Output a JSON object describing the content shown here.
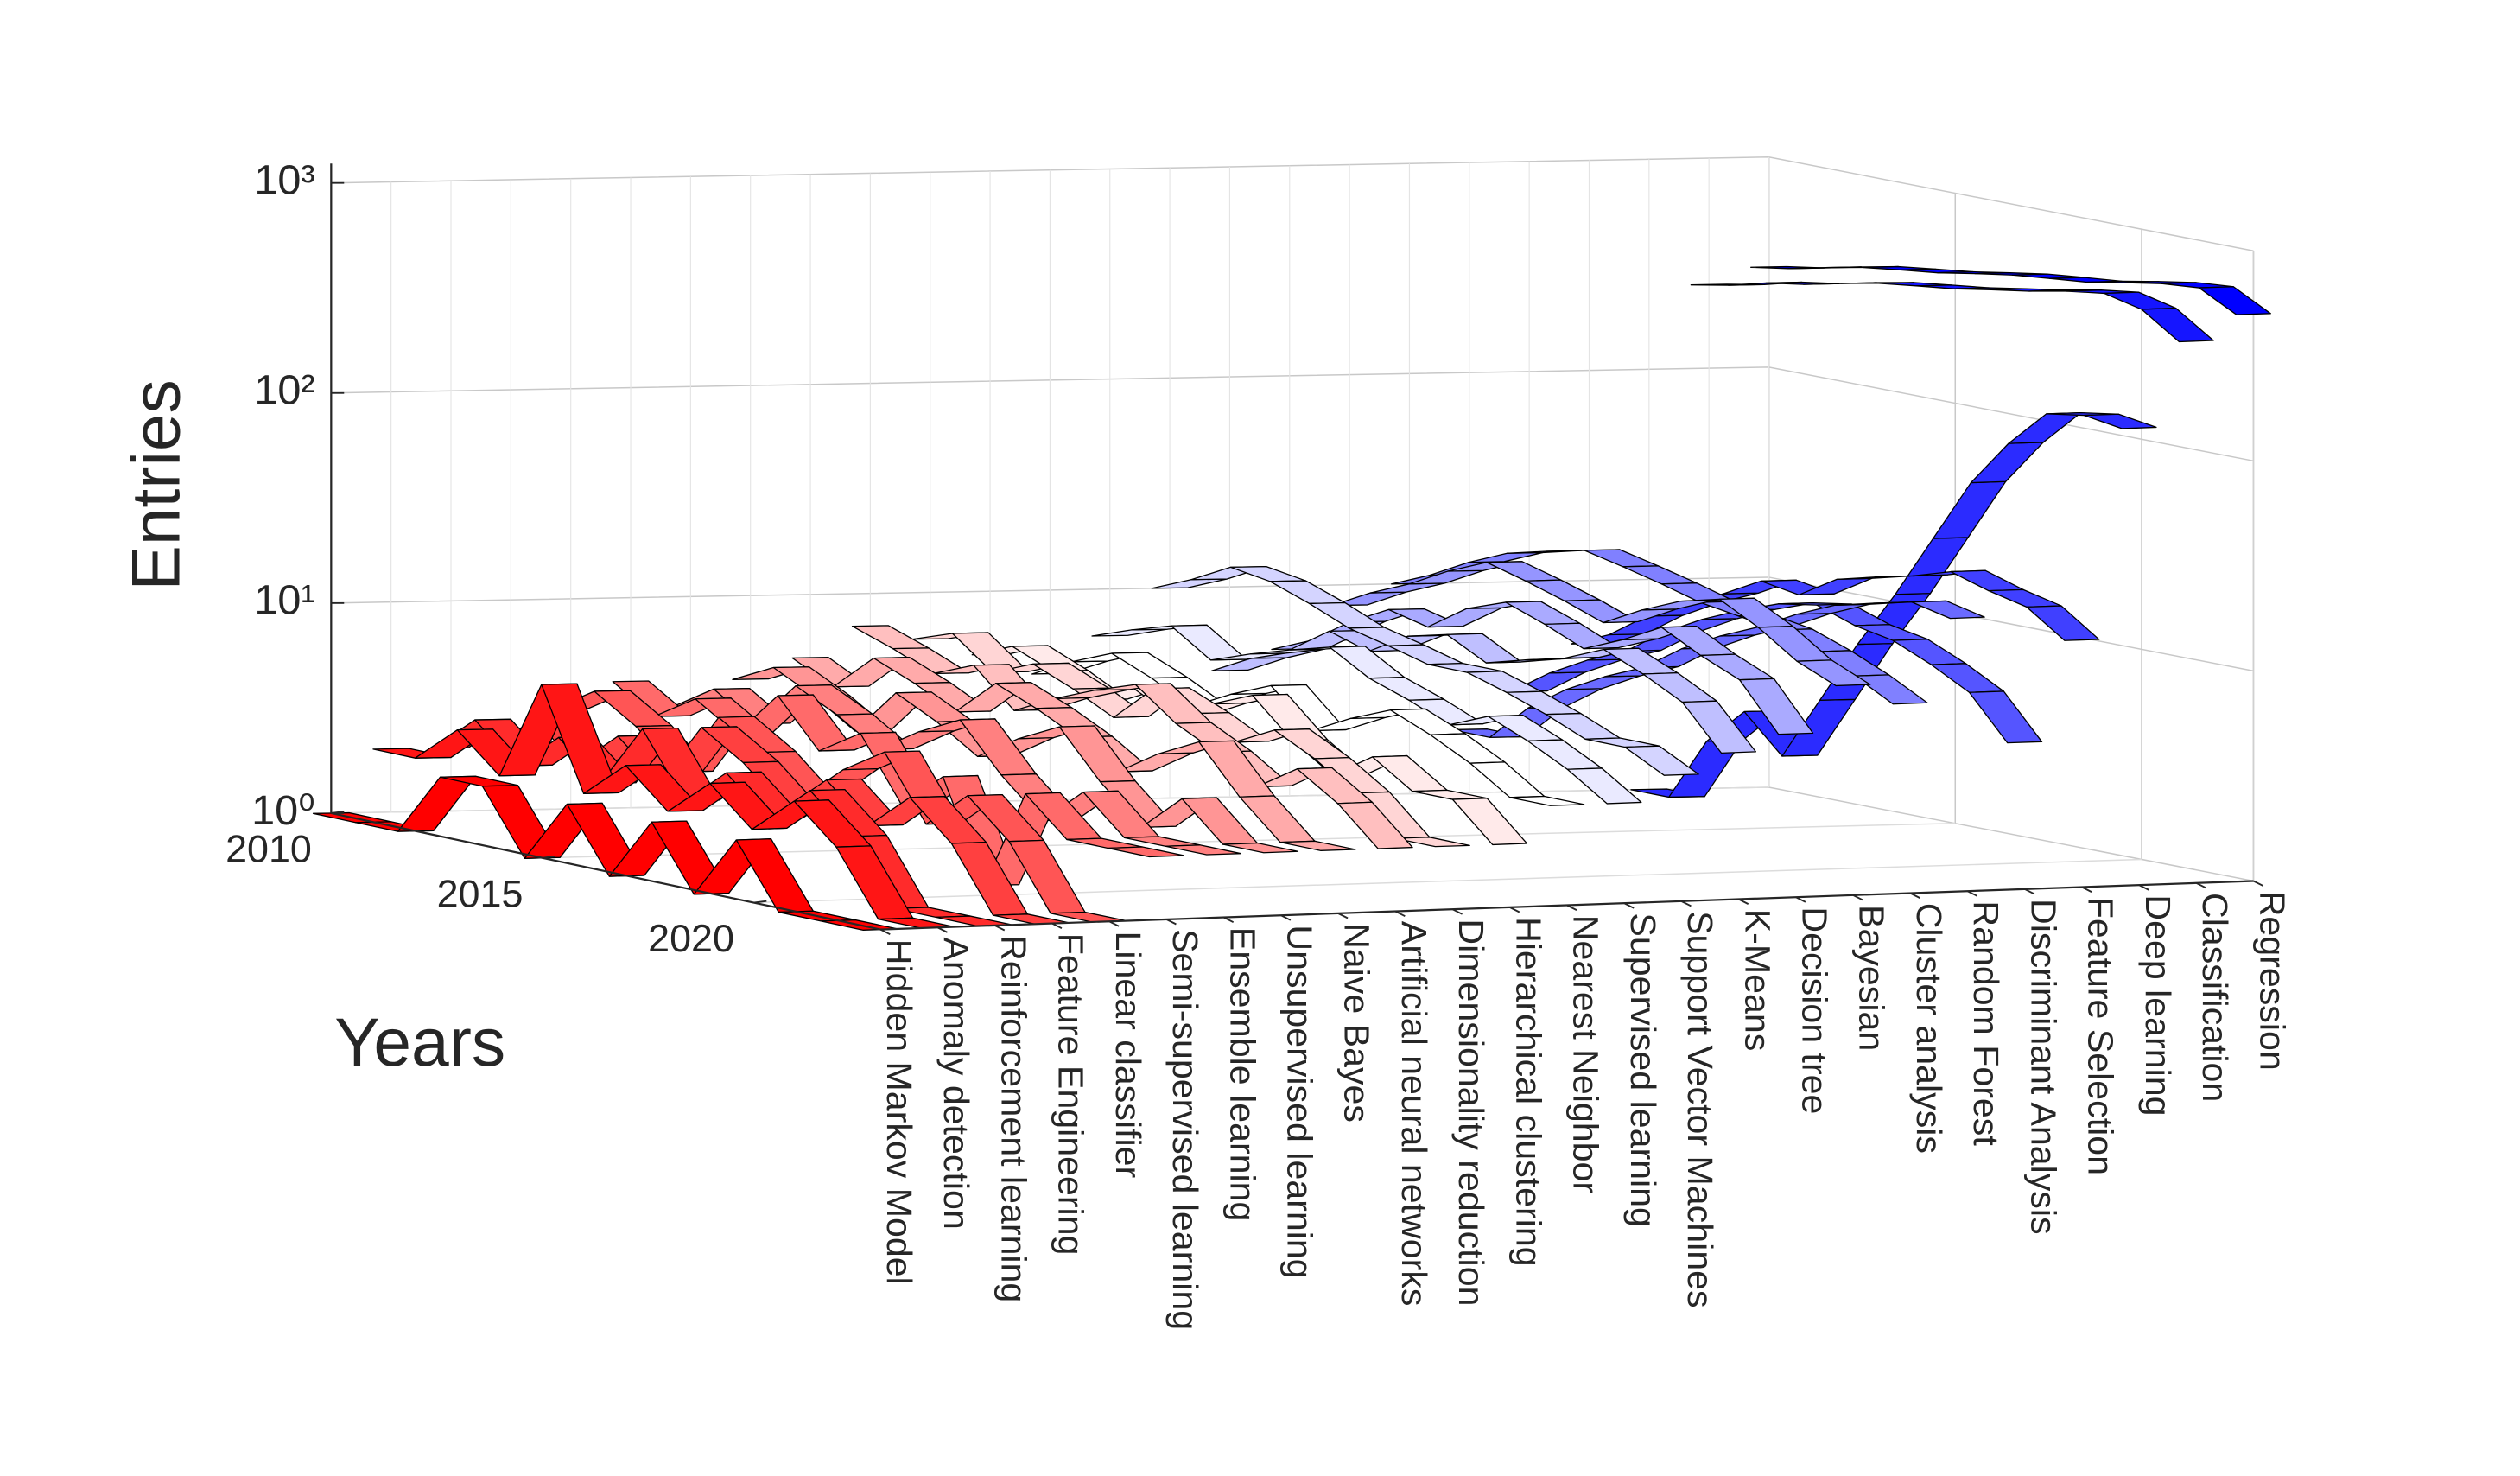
{
  "chart_data": {
    "type": "ribbon3d",
    "xlabel": "Years",
    "ylabel": "Entries",
    "x": [
      2010,
      2011,
      2012,
      2013,
      2014,
      2015,
      2016,
      2017,
      2018,
      2019,
      2020,
      2021,
      2022,
      2023
    ],
    "xlim": [
      2010,
      2023
    ],
    "xticks": [
      2010,
      2015,
      2020
    ],
    "ylim": [
      1,
      1000
    ],
    "yticks": [
      {
        "value": 1,
        "label": "10⁰"
      },
      {
        "value": 10,
        "label": "10¹"
      },
      {
        "value": 100,
        "label": "10²"
      },
      {
        "value": 1000,
        "label": "10³"
      }
    ],
    "log_scale": true,
    "grid": true,
    "colormap": [
      "#ff0000",
      "#ffffff",
      "#0000ff"
    ],
    "categories": [
      "Hidden Markov Model",
      "Anomaly detection",
      "Reinforcement learning",
      "Feature Engineering",
      "Linear classifier",
      "Semi-supervised learning",
      "Ensemble learning",
      "Unsupervised learning",
      "Naive Bayes",
      "Artificial neural networks",
      "Dimensionality reduction",
      "Hierarchical clustering",
      "Nearest Neighbor",
      "Supervised learning",
      "Support Vector Machines",
      "K-Means",
      "Decision tree",
      "Bayesian",
      "Cluster analysis",
      "Random Forest",
      "Discriminant Analysis",
      "Feature Selection",
      "Deep learning",
      "Classification",
      "Regression"
    ],
    "series": [
      {
        "name": "Hidden Markov Model",
        "values": [
          1,
          1,
          1,
          2,
          2,
          1,
          2,
          1,
          2,
          1,
          2,
          1,
          1,
          1
        ]
      },
      {
        "name": "Anomaly detection",
        "values": [
          2,
          2,
          3,
          2,
          6,
          2,
          3,
          2,
          3,
          2,
          3,
          2,
          1,
          1
        ]
      },
      {
        "name": "Reinforcement learning",
        "values": [
          2,
          3,
          2,
          3,
          2,
          4,
          2,
          3,
          2,
          3,
          2,
          1,
          1,
          1
        ]
      },
      {
        "name": "Feature Engineering",
        "values": [
          2,
          3,
          2,
          3,
          2,
          4,
          3,
          2,
          3,
          2,
          3,
          2,
          1,
          1
        ]
      },
      {
        "name": "Linear classifier",
        "values": [
          3,
          4,
          3,
          2,
          4,
          3,
          2,
          3,
          4,
          2,
          3,
          2,
          1,
          1
        ]
      },
      {
        "name": "Semi-supervised learning",
        "values": [
          4,
          3,
          4,
          3,
          5,
          3,
          4,
          2,
          3,
          1,
          3,
          2,
          2,
          2
        ]
      },
      {
        "name": "Ensemble learning",
        "values": [
          3,
          4,
          3,
          5,
          4,
          3,
          4,
          5,
          3,
          2,
          3,
          2,
          2,
          2
        ]
      },
      {
        "name": "Unsupervised learning",
        "values": [
          4,
          5,
          4,
          3,
          5,
          4,
          3,
          4,
          5,
          3,
          2,
          3,
          2,
          2
        ]
      },
      {
        "name": "Naive Bayes",
        "values": [
          5,
          4,
          6,
          5,
          4,
          6,
          5,
          4,
          3,
          4,
          5,
          3,
          2,
          2
        ]
      },
      {
        "name": "Artificial neural networks",
        "values": [
          7,
          6,
          5,
          6,
          4,
          5,
          6,
          7,
          5,
          4,
          3,
          4,
          3,
          2
        ]
      },
      {
        "name": "Dimensionality reduction",
        "values": [
          6,
          7,
          5,
          6,
          5,
          4,
          6,
          5,
          4,
          5,
          4,
          3,
          2,
          2
        ]
      },
      {
        "name": "Hierarchical clustering",
        "values": [
          5,
          6,
          5,
          4,
          5,
          4,
          5,
          6,
          4,
          3,
          4,
          3,
          3,
          2
        ]
      },
      {
        "name": "Nearest Neighbor",
        "values": [
          4,
          5,
          6,
          5,
          4,
          5,
          6,
          4,
          5,
          6,
          5,
          4,
          3,
          3
        ]
      },
      {
        "name": "Supervised learning",
        "values": [
          6,
          7,
          8,
          6,
          7,
          8,
          9,
          7,
          6,
          5,
          6,
          5,
          4,
          3
        ]
      },
      {
        "name": "Support Vector Machines",
        "values": [
          10,
          12,
          15,
          14,
          12,
          10,
          9,
          8,
          8,
          7,
          6,
          5,
          5,
          4
        ]
      },
      {
        "name": "K-Means",
        "values": [
          4,
          5,
          6,
          8,
          7,
          9,
          10,
          8,
          9,
          10,
          12,
          10,
          8,
          5
        ]
      },
      {
        "name": "Decision tree",
        "values": [
          5,
          6,
          8,
          10,
          9,
          12,
          14,
          12,
          10,
          12,
          15,
          12,
          10,
          6
        ]
      },
      {
        "name": "Bayesian",
        "values": [
          8,
          10,
          12,
          15,
          18,
          16,
          14,
          12,
          15,
          18,
          20,
          16,
          12,
          10
        ]
      },
      {
        "name": "Cluster analysis",
        "values": [
          10,
          12,
          15,
          18,
          20,
          22,
          20,
          18,
          16,
          15,
          14,
          12,
          10,
          8
        ]
      },
      {
        "name": "Random Forest",
        "values": [
          2,
          2,
          3,
          4,
          5,
          6,
          8,
          10,
          12,
          15,
          18,
          20,
          22,
          20
        ]
      },
      {
        "name": "Discriminant Analysis",
        "values": [
          3,
          4,
          5,
          6,
          8,
          10,
          12,
          14,
          15,
          13,
          12,
          10,
          8,
          5
        ]
      },
      {
        "name": "Feature Selection",
        "values": [
          5,
          6,
          8,
          10,
          12,
          15,
          14,
          18,
          20,
          22,
          25,
          22,
          20,
          15
        ]
      },
      {
        "name": "Deep learning",
        "values": [
          1,
          1,
          2,
          3,
          2,
          4,
          8,
          15,
          30,
          60,
          100,
          150,
          160,
          150
        ]
      },
      {
        "name": "Classification",
        "values": [
          250,
          270,
          300,
          320,
          350,
          380,
          400,
          420,
          450,
          480,
          520,
          550,
          500,
          380
        ]
      },
      {
        "name": "Regression",
        "values": [
          300,
          320,
          350,
          380,
          400,
          420,
          450,
          480,
          500,
          520,
          560,
          600,
          620,
          500
        ]
      }
    ]
  }
}
